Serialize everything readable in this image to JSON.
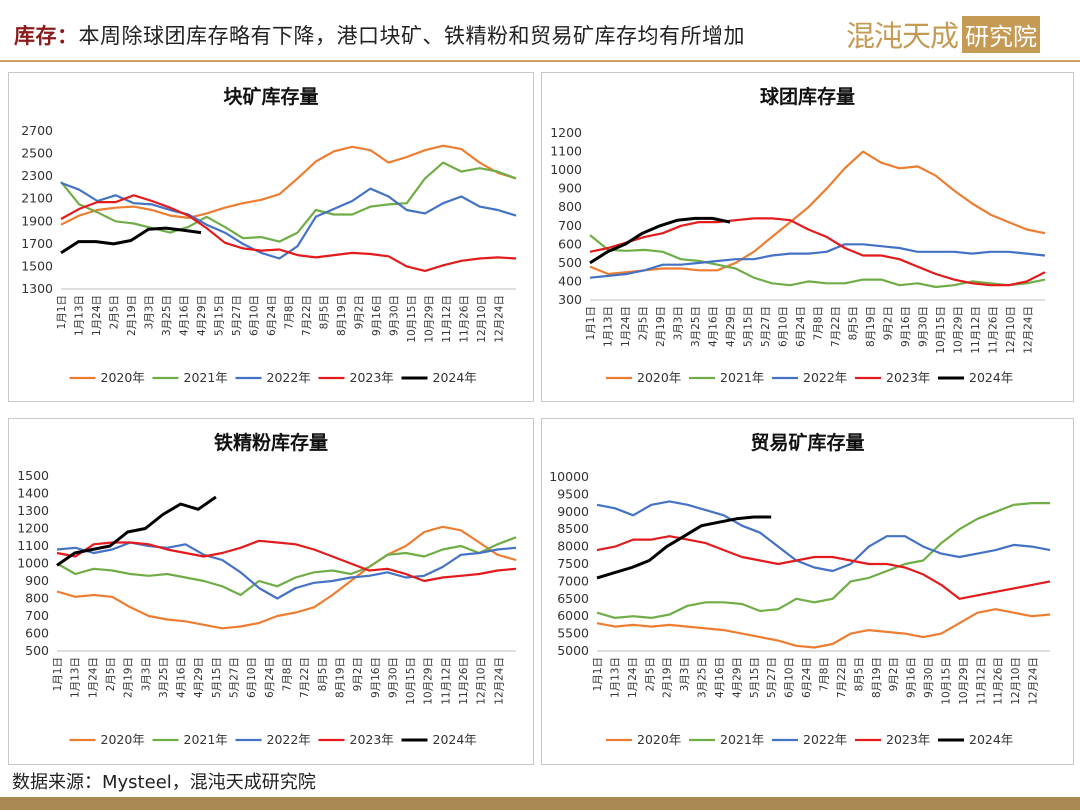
{
  "header": {
    "title_key": "库存：",
    "title_rest": "本周除球团库存略有下降，港口块矿、铁精粉和贸易矿库存均有所增加",
    "brand_script": "混沌天成",
    "brand_box": "研究院"
  },
  "footer": {
    "source": "数据来源：Mysteel，混沌天成研究院"
  },
  "colors": {
    "2020年": "#ED7D31",
    "2021年": "#70AD47",
    "2022年": "#4472C4",
    "2023年": "#E41A1C",
    "2024年": "#000000"
  },
  "x_labels": [
    "1月1日",
    "1月13日",
    "1月24日",
    "2月5日",
    "2月19日",
    "3月3日",
    "3月25日",
    "4月16日",
    "4月29日",
    "5月15日",
    "5月27日",
    "6月10日",
    "6月24日",
    "7月8日",
    "7月22日",
    "8月5日",
    "8月19日",
    "9月2日",
    "9月16日",
    "9月30日",
    "10月15日",
    "10月29日",
    "11月12日",
    "11月26日",
    "12月10日",
    "12月24日"
  ],
  "chart_data": [
    {
      "type": "line",
      "title": "块矿库存量",
      "ylim": [
        1300,
        2700
      ],
      "yticks": [
        1300,
        1500,
        1700,
        1900,
        2100,
        2300,
        2500,
        2700
      ],
      "legend_position": "bottom",
      "series": [
        {
          "name": "2020年",
          "values": [
            1870,
            1950,
            2000,
            2020,
            2030,
            2000,
            1950,
            1930,
            1970,
            2020,
            2060,
            2090,
            2140,
            2280,
            2430,
            2520,
            2560,
            2530,
            2420,
            2470,
            2530,
            2570,
            2540,
            2420,
            2330,
            2280
          ]
        },
        {
          "name": "2021年",
          "values": [
            2250,
            2050,
            1980,
            1900,
            1880,
            1840,
            1800,
            1850,
            1940,
            1850,
            1750,
            1760,
            1720,
            1800,
            2000,
            1960,
            1960,
            2030,
            2050,
            2060,
            2280,
            2420,
            2340,
            2370,
            2340,
            2280
          ]
        },
        {
          "name": "2022年",
          "values": [
            2240,
            2180,
            2080,
            2130,
            2060,
            2050,
            2000,
            1960,
            1870,
            1800,
            1700,
            1620,
            1570,
            1680,
            1940,
            2010,
            2080,
            2190,
            2120,
            2000,
            1970,
            2060,
            2120,
            2030,
            2000,
            1950
          ]
        },
        {
          "name": "2023年",
          "values": [
            1920,
            2010,
            2070,
            2070,
            2130,
            2080,
            2020,
            1950,
            1840,
            1710,
            1660,
            1640,
            1650,
            1600,
            1580,
            1600,
            1620,
            1610,
            1590,
            1500,
            1460,
            1510,
            1550,
            1570,
            1580,
            1570
          ]
        },
        {
          "name": "2024年",
          "values": [
            1620,
            1720,
            1720,
            1700,
            1730,
            1830,
            1840,
            1820,
            1800
          ]
        }
      ]
    },
    {
      "type": "line",
      "title": "球团库存量",
      "ylim": [
        300,
        1200
      ],
      "yticks": [
        300,
        400,
        500,
        600,
        700,
        800,
        900,
        1000,
        1100,
        1200
      ],
      "legend_position": "bottom",
      "series": [
        {
          "name": "2020年",
          "values": [
            480,
            440,
            450,
            460,
            470,
            470,
            460,
            460,
            500,
            560,
            640,
            720,
            800,
            900,
            1010,
            1100,
            1040,
            1010,
            1020,
            970,
            890,
            820,
            760,
            720,
            680,
            660
          ]
        },
        {
          "name": "2021年",
          "values": [
            650,
            570,
            565,
            570,
            560,
            520,
            510,
            490,
            470,
            420,
            390,
            380,
            400,
            390,
            390,
            410,
            410,
            380,
            390,
            370,
            380,
            400,
            390,
            380,
            390,
            410
          ]
        },
        {
          "name": "2022年",
          "values": [
            420,
            430,
            440,
            460,
            490,
            490,
            500,
            510,
            520,
            520,
            540,
            550,
            550,
            560,
            600,
            600,
            590,
            580,
            560,
            560,
            560,
            550,
            560,
            560,
            550,
            540
          ]
        },
        {
          "name": "2023年",
          "values": [
            560,
            580,
            610,
            640,
            660,
            700,
            720,
            720,
            730,
            740,
            740,
            730,
            680,
            640,
            580,
            540,
            540,
            520,
            480,
            440,
            410,
            390,
            380,
            380,
            400,
            450
          ]
        },
        {
          "name": "2024年",
          "values": [
            500,
            560,
            600,
            660,
            700,
            730,
            740,
            740,
            720
          ]
        }
      ]
    },
    {
      "type": "line",
      "title": "铁精粉库存量",
      "ylim": [
        500,
        1500
      ],
      "yticks": [
        500,
        600,
        700,
        800,
        900,
        1000,
        1100,
        1200,
        1300,
        1400,
        1500
      ],
      "legend_position": "bottom",
      "series": [
        {
          "name": "2020年",
          "values": [
            840,
            810,
            820,
            810,
            750,
            700,
            680,
            670,
            650,
            630,
            640,
            660,
            700,
            720,
            750,
            820,
            900,
            980,
            1050,
            1100,
            1180,
            1210,
            1190,
            1120,
            1050,
            1020
          ]
        },
        {
          "name": "2021年",
          "values": [
            1000,
            940,
            970,
            960,
            940,
            930,
            940,
            920,
            900,
            870,
            820,
            900,
            870,
            920,
            950,
            960,
            940,
            980,
            1050,
            1060,
            1040,
            1080,
            1100,
            1060,
            1110,
            1150
          ]
        },
        {
          "name": "2022年",
          "values": [
            1080,
            1090,
            1060,
            1080,
            1120,
            1100,
            1090,
            1110,
            1050,
            1020,
            950,
            860,
            800,
            860,
            890,
            900,
            920,
            930,
            950,
            920,
            930,
            980,
            1050,
            1060,
            1080,
            1090
          ]
        },
        {
          "name": "2023年",
          "values": [
            1060,
            1040,
            1110,
            1120,
            1120,
            1110,
            1080,
            1060,
            1040,
            1060,
            1090,
            1130,
            1120,
            1110,
            1080,
            1040,
            1000,
            960,
            970,
            940,
            900,
            920,
            930,
            940,
            960,
            970
          ]
        },
        {
          "name": "2024年",
          "values": [
            990,
            1060,
            1080,
            1100,
            1180,
            1200,
            1280,
            1340,
            1310,
            1380
          ]
        }
      ]
    },
    {
      "type": "line",
      "title": "贸易矿库存量",
      "ylim": [
        5000,
        10000
      ],
      "yticks": [
        5000,
        5500,
        6000,
        6500,
        7000,
        7500,
        8000,
        8500,
        9000,
        9500,
        10000
      ],
      "legend_position": "bottom",
      "series": [
        {
          "name": "2020年",
          "values": [
            5800,
            5700,
            5750,
            5700,
            5750,
            5700,
            5650,
            5600,
            5500,
            5400,
            5300,
            5150,
            5100,
            5200,
            5500,
            5600,
            5550,
            5500,
            5400,
            5500,
            5800,
            6100,
            6200,
            6100,
            6000,
            6050
          ]
        },
        {
          "name": "2021年",
          "values": [
            6100,
            5950,
            6000,
            5950,
            6050,
            6300,
            6400,
            6400,
            6350,
            6150,
            6200,
            6500,
            6400,
            6500,
            7000,
            7100,
            7300,
            7500,
            7600,
            8100,
            8500,
            8800,
            9000,
            9200,
            9250,
            9250
          ]
        },
        {
          "name": "2022年",
          "values": [
            9200,
            9100,
            8900,
            9200,
            9300,
            9200,
            9050,
            8900,
            8600,
            8400,
            8000,
            7600,
            7400,
            7300,
            7500,
            8000,
            8300,
            8300,
            8000,
            7800,
            7700,
            7800,
            7900,
            8050,
            8000,
            7900
          ]
        },
        {
          "name": "2023年",
          "values": [
            7900,
            8000,
            8200,
            8200,
            8300,
            8200,
            8100,
            7900,
            7700,
            7600,
            7500,
            7600,
            7700,
            7700,
            7600,
            7500,
            7500,
            7400,
            7200,
            6900,
            6500,
            6600,
            6700,
            6800,
            6900,
            7000
          ]
        },
        {
          "name": "2024年",
          "values": [
            7100,
            7250,
            7400,
            7600,
            8000,
            8300,
            8600,
            8700,
            8800,
            8850,
            8850
          ]
        }
      ]
    }
  ]
}
